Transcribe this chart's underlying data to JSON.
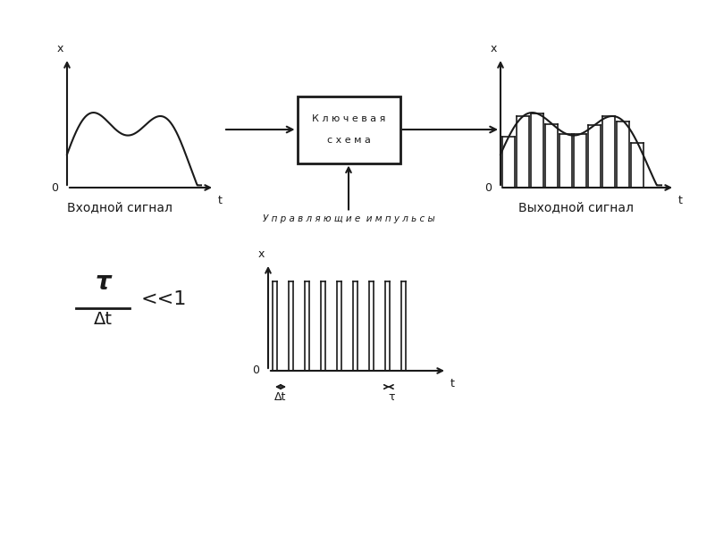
{
  "bg_color": "#ffffff",
  "line_color": "#1a1a1a",
  "input_signal_label": "Входной сигнал",
  "output_signal_label": "Выходной сигнал",
  "box_label_line1": "К л ю ч е в а я",
  "box_label_line2": "с х е м а",
  "control_label": "У п р а в л я ю щ и е  и м п у л ь с ы",
  "formula_tau": "τ",
  "formula_dt": "Δt",
  "formula_ll1": "<<1",
  "dt_label": "Δt",
  "tau_label": "τ",
  "x_label": "x",
  "t_label": "t",
  "zero_label": "0"
}
